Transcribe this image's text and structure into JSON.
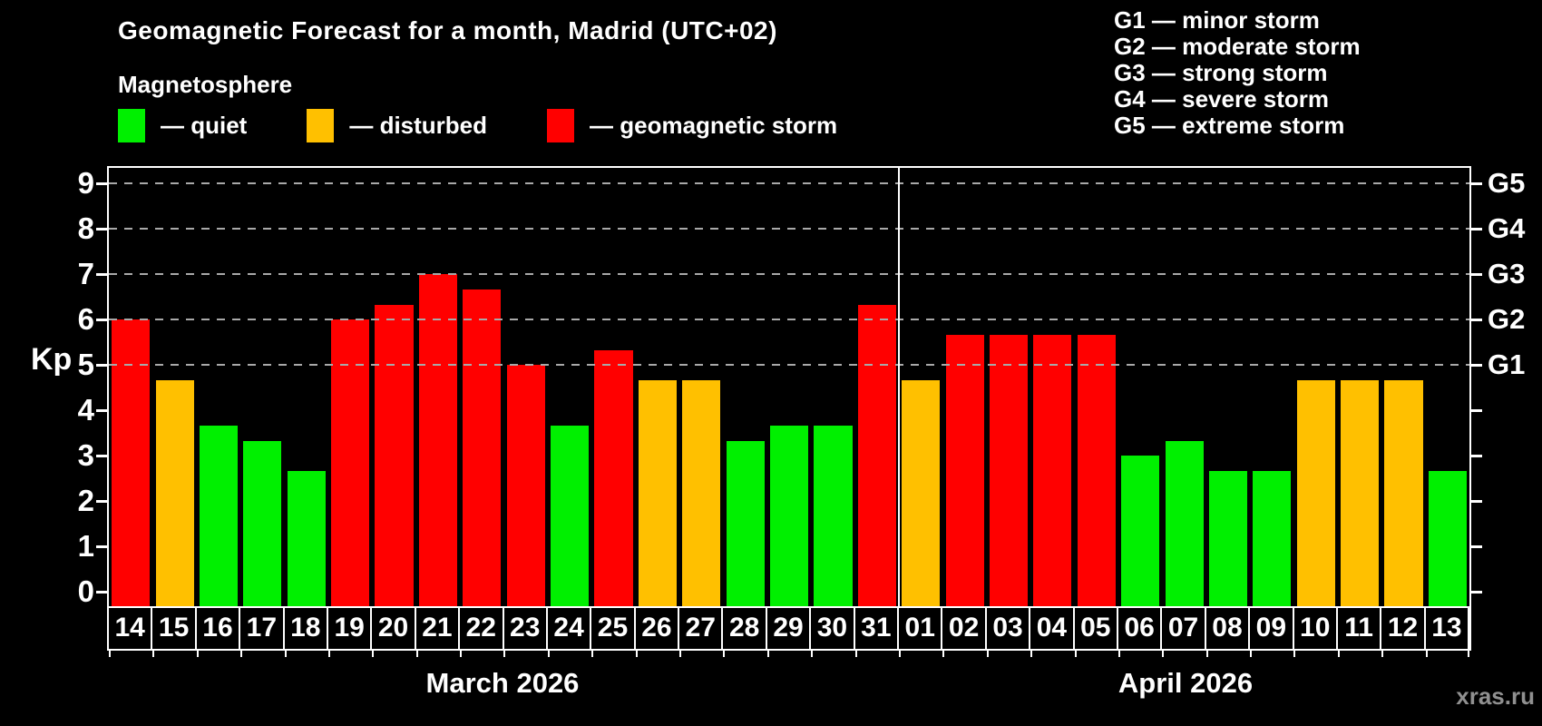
{
  "header": {
    "title": "Geomagnetic Forecast for a month, Madrid (UTC+02)",
    "subtitle": "Magnetosphere"
  },
  "legend": [
    {
      "key": "quiet",
      "label": "— quiet",
      "color": "#00f000"
    },
    {
      "key": "disturbed",
      "label": "— disturbed",
      "color": "#ffc000"
    },
    {
      "key": "storm",
      "label": "— geomagnetic storm",
      "color": "#ff0000"
    }
  ],
  "g_scale_legend": [
    "G1 — minor storm",
    "G2 — moderate storm",
    "G3 — strong storm",
    "G4 — severe storm",
    "G5 — extreme storm"
  ],
  "watermark": "xras.ru",
  "chart_data": {
    "type": "bar",
    "title": "Geomagnetic Forecast for a month, Madrid (UTC+02)",
    "ylabel": "Kp",
    "ylim": [
      0,
      9.4
    ],
    "y_ticks": [
      0,
      1,
      2,
      3,
      4,
      5,
      6,
      7,
      8,
      9
    ],
    "gridlines_at_kp": [
      5,
      6,
      7,
      8,
      9
    ],
    "grid_style": "dashed gray, only at G-level thresholds",
    "right_axis_labels": [
      {
        "kp": 5,
        "text": "G1"
      },
      {
        "kp": 6,
        "text": "G2"
      },
      {
        "kp": 7,
        "text": "G3"
      },
      {
        "kp": 8,
        "text": "G4"
      },
      {
        "kp": 9,
        "text": "G5"
      }
    ],
    "colors": {
      "quiet": "#00f000",
      "disturbed": "#ffc000",
      "storm": "#ff0000"
    },
    "months": [
      {
        "label": "March 2026",
        "days": [
          {
            "day": "14",
            "kp": 6.0,
            "level": "storm"
          },
          {
            "day": "15",
            "kp": 4.67,
            "level": "disturbed"
          },
          {
            "day": "16",
            "kp": 3.67,
            "level": "quiet"
          },
          {
            "day": "17",
            "kp": 3.33,
            "level": "quiet"
          },
          {
            "day": "18",
            "kp": 2.67,
            "level": "quiet"
          },
          {
            "day": "19",
            "kp": 6.0,
            "level": "storm"
          },
          {
            "day": "20",
            "kp": 6.33,
            "level": "storm"
          },
          {
            "day": "21",
            "kp": 7.0,
            "level": "storm"
          },
          {
            "day": "22",
            "kp": 6.67,
            "level": "storm"
          },
          {
            "day": "23",
            "kp": 5.0,
            "level": "storm"
          },
          {
            "day": "24",
            "kp": 3.67,
            "level": "quiet"
          },
          {
            "day": "25",
            "kp": 5.33,
            "level": "storm"
          },
          {
            "day": "26",
            "kp": 4.67,
            "level": "disturbed"
          },
          {
            "day": "27",
            "kp": 4.67,
            "level": "disturbed"
          },
          {
            "day": "28",
            "kp": 3.33,
            "level": "quiet"
          },
          {
            "day": "29",
            "kp": 3.67,
            "level": "quiet"
          },
          {
            "day": "30",
            "kp": 3.67,
            "level": "quiet"
          },
          {
            "day": "31",
            "kp": 6.33,
            "level": "storm"
          }
        ]
      },
      {
        "label": "April 2026",
        "days": [
          {
            "day": "01",
            "kp": 4.67,
            "level": "disturbed"
          },
          {
            "day": "02",
            "kp": 5.67,
            "level": "storm"
          },
          {
            "day": "03",
            "kp": 5.67,
            "level": "storm"
          },
          {
            "day": "04",
            "kp": 5.67,
            "level": "storm"
          },
          {
            "day": "05",
            "kp": 5.67,
            "level": "storm"
          },
          {
            "day": "06",
            "kp": 3.0,
            "level": "quiet"
          },
          {
            "day": "07",
            "kp": 3.33,
            "level": "quiet"
          },
          {
            "day": "08",
            "kp": 2.67,
            "level": "quiet"
          },
          {
            "day": "09",
            "kp": 2.67,
            "level": "quiet"
          },
          {
            "day": "10",
            "kp": 4.67,
            "level": "disturbed"
          },
          {
            "day": "11",
            "kp": 4.67,
            "level": "disturbed"
          },
          {
            "day": "12",
            "kp": 4.67,
            "level": "disturbed"
          },
          {
            "day": "13",
            "kp": 2.67,
            "level": "quiet"
          }
        ]
      }
    ]
  }
}
